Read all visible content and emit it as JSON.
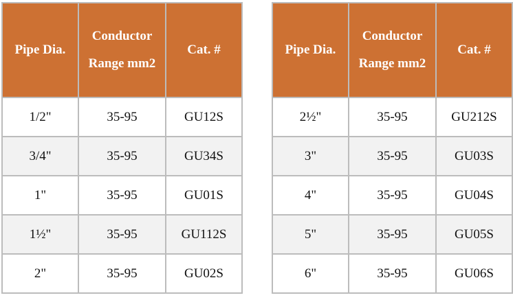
{
  "tables": [
    {
      "header": [
        "Pipe Dia.",
        "Conductor Range mm2",
        "Cat. #"
      ],
      "rows": [
        [
          "1/2\"",
          "35-95",
          "GU12S"
        ],
        [
          "3/4\"",
          "35-95",
          "GU34S"
        ],
        [
          "1\"",
          "35-95",
          "GU01S"
        ],
        [
          "1½\"",
          "35-95",
          "GU112S"
        ],
        [
          "2\"",
          "35-95",
          "GU02S"
        ]
      ]
    },
    {
      "header": [
        "Pipe Dia.",
        "Conductor Range mm2",
        "Cat. #"
      ],
      "rows": [
        [
          "2½\"",
          "35-95",
          "GU212S"
        ],
        [
          "3\"",
          "35-95",
          "GU03S"
        ],
        [
          "4\"",
          "35-95",
          "GU04S"
        ],
        [
          "5\"",
          "35-95",
          "GU05S"
        ],
        [
          "6\"",
          "35-95",
          "GU06S"
        ]
      ]
    }
  ]
}
